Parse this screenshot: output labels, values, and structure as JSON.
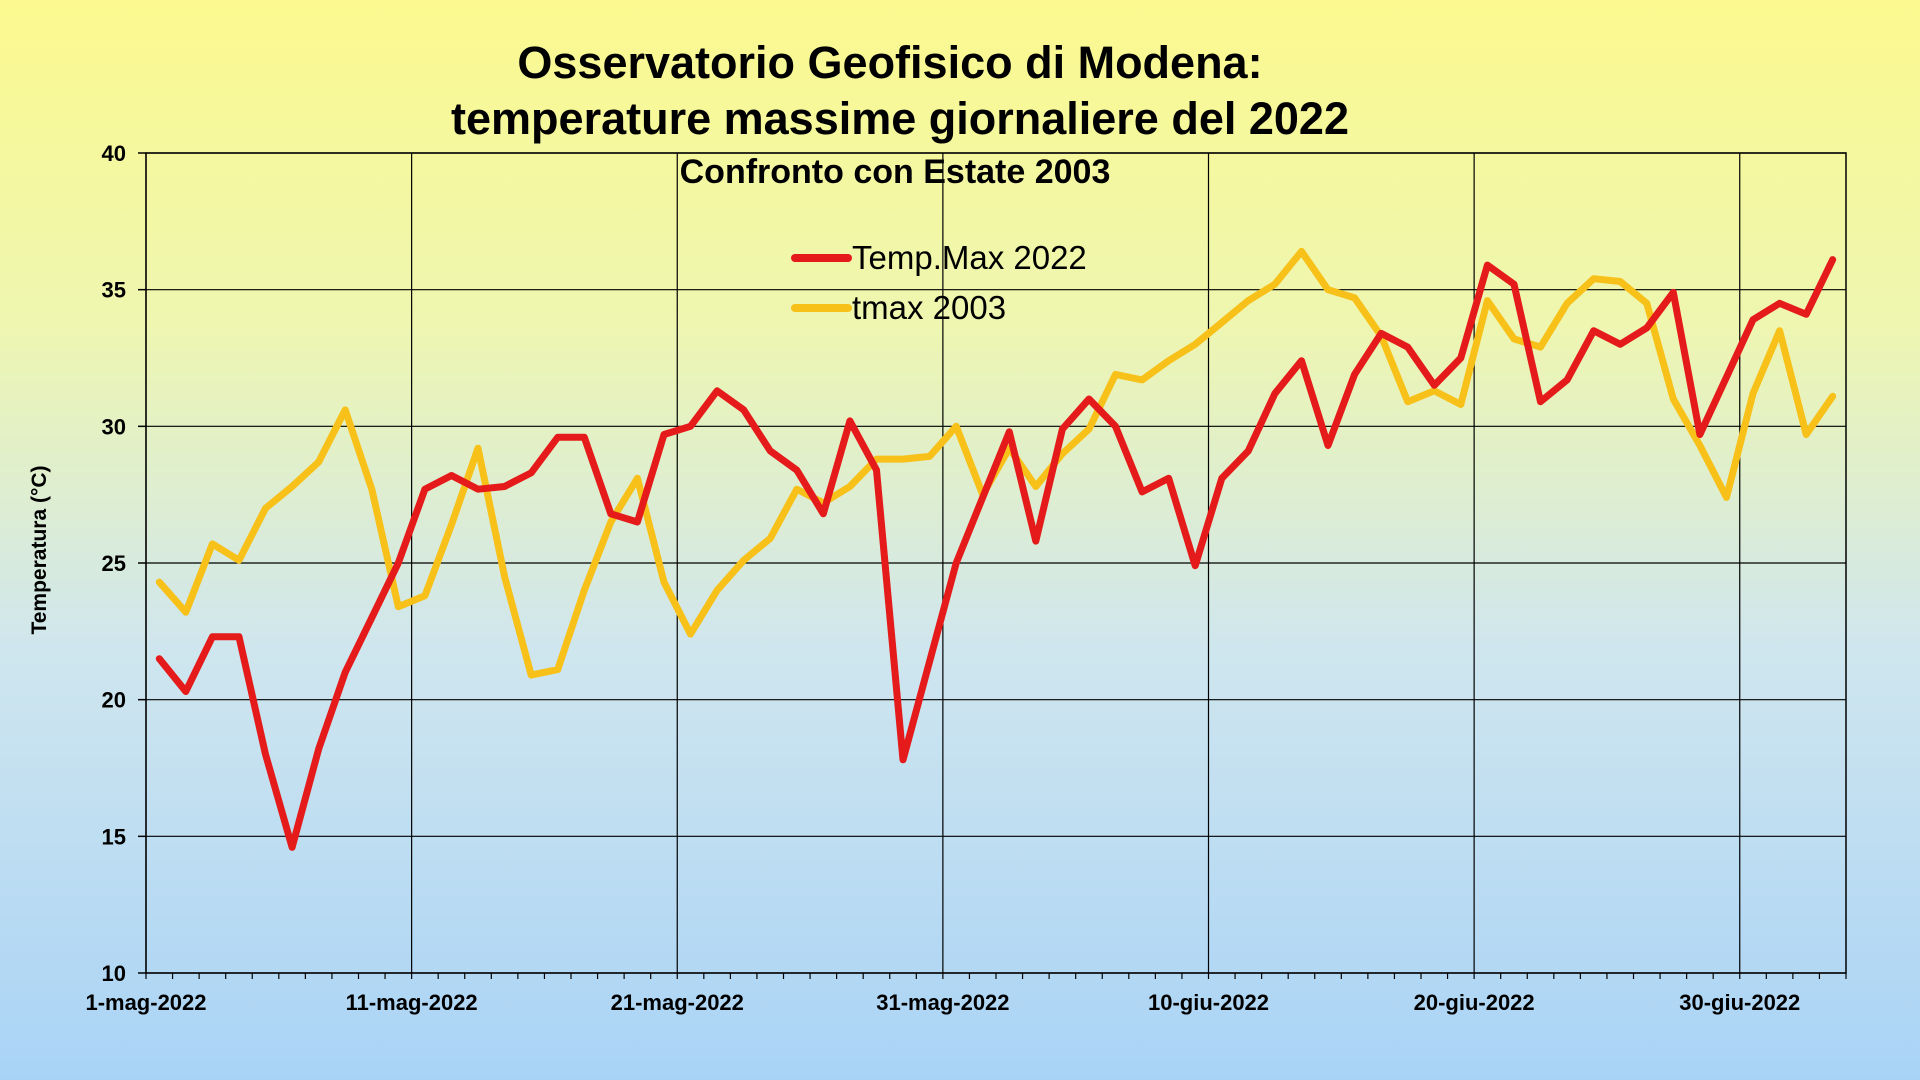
{
  "chart_data": {
    "type": "line",
    "title_line1": "Osservatorio Geofisico di Modena:",
    "title_line2": "temperature massime giornaliere del 2022",
    "subtitle": "Confronto con Estate 2003",
    "ylabel": "Temperatura (°C)",
    "xlabel": "",
    "ylim": [
      10,
      40
    ],
    "yticks": [
      10,
      15,
      20,
      25,
      30,
      35,
      40
    ],
    "xtick_labels": [
      "1-mag-2022",
      "11-mag-2022",
      "21-mag-2022",
      "31-mag-2022",
      "10-giu-2022",
      "20-giu-2022",
      "30-giu-2022"
    ],
    "xtick_days": [
      0,
      10,
      20,
      30,
      40,
      50,
      60
    ],
    "x_days": 64,
    "grid": true,
    "legend_position": "top-center",
    "series": [
      {
        "name": "Temp.Max 2022",
        "color": "#e51a1a",
        "values": [
          21.5,
          20.3,
          22.3,
          22.3,
          18.0,
          14.6,
          18.2,
          21.0,
          23.0,
          25.0,
          27.7,
          28.2,
          27.7,
          27.8,
          28.3,
          29.6,
          29.6,
          26.8,
          26.5,
          29.7,
          30.0,
          31.3,
          30.6,
          29.1,
          28.4,
          26.8,
          30.2,
          28.4,
          17.8,
          21.4,
          25.0,
          27.4,
          29.8,
          25.8,
          29.9,
          31.0,
          30.0,
          27.6,
          28.1,
          24.9,
          28.1,
          29.1,
          31.2,
          32.4,
          29.3,
          31.9,
          33.4,
          32.9,
          31.5,
          32.5,
          35.9,
          35.2,
          30.9,
          31.7,
          33.5,
          33.0,
          33.6,
          34.9,
          29.7,
          31.8,
          33.9,
          34.5,
          34.1,
          36.1
        ]
      },
      {
        "name": "tmax 2003",
        "color": "#f7c11a",
        "values": [
          24.3,
          23.2,
          25.7,
          25.1,
          27.0,
          27.8,
          28.7,
          30.6,
          27.7,
          23.4,
          23.8,
          26.4,
          29.2,
          24.5,
          20.9,
          21.1,
          24.0,
          26.5,
          28.1,
          24.3,
          22.4,
          24.0,
          25.1,
          25.9,
          27.7,
          27.2,
          27.8,
          28.8,
          28.8,
          28.9,
          30.0,
          27.5,
          29.2,
          27.8,
          29.0,
          29.9,
          31.9,
          31.7,
          32.4,
          33.0,
          33.8,
          34.6,
          35.2,
          36.4,
          35.0,
          34.7,
          33.3,
          30.9,
          31.3,
          30.8,
          34.6,
          33.2,
          32.9,
          34.5,
          35.4,
          35.3,
          34.5,
          31.0,
          29.3,
          27.4,
          31.2,
          33.5,
          29.7,
          31.1
        ]
      }
    ]
  }
}
